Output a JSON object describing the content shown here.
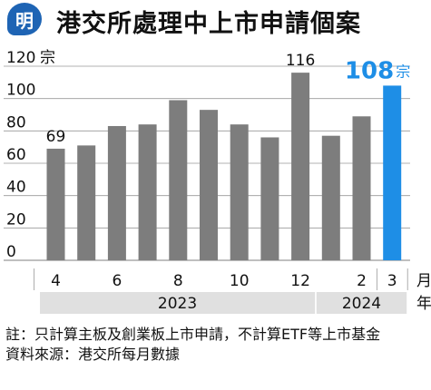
{
  "header": {
    "logo_text": "明",
    "title": "港交所處理中上市申請個案"
  },
  "chart_data": {
    "type": "bar",
    "title": "港交所處理中上市申請個案",
    "ylabel": "宗",
    "xlabel": "月",
    "year_label_unit": "年",
    "ylim": [
      0,
      120
    ],
    "yticks": [
      0,
      20,
      40,
      60,
      80,
      100,
      120
    ],
    "categories": [
      "2023-04",
      "2023-05",
      "2023-06",
      "2023-07",
      "2023-08",
      "2023-09",
      "2023-10",
      "2023-11",
      "2023-12",
      "2024-01",
      "2024-02",
      "2024-03"
    ],
    "x_tick_labels": [
      "4",
      "",
      "6",
      "",
      "8",
      "",
      "10",
      "",
      "12",
      "",
      "2",
      "3"
    ],
    "years": [
      {
        "label": "2023",
        "from_index": 0,
        "to_index": 8
      },
      {
        "label": "2024",
        "from_index": 9,
        "to_index": 11
      }
    ],
    "values": [
      69,
      71,
      83,
      84,
      99,
      93,
      84,
      76,
      116,
      77,
      89,
      108
    ],
    "data_labels": [
      {
        "index": 0,
        "text": "69"
      },
      {
        "index": 8,
        "text": "116"
      },
      {
        "index": 11,
        "text": "108",
        "unit": "宗"
      }
    ],
    "colors": {
      "bar": "#7d7d7d",
      "highlight_bar": "#1e8ee6",
      "highlight_text": "#1e8ee6",
      "grid": "#999999",
      "year_band": "#e0e0e0"
    },
    "highlight_index": 11
  },
  "notes": {
    "label": "註：",
    "text": "只計算主板及創業板上市申請，不計算ETF等上市基金",
    "source": "資料來源：港交所每月數據"
  }
}
